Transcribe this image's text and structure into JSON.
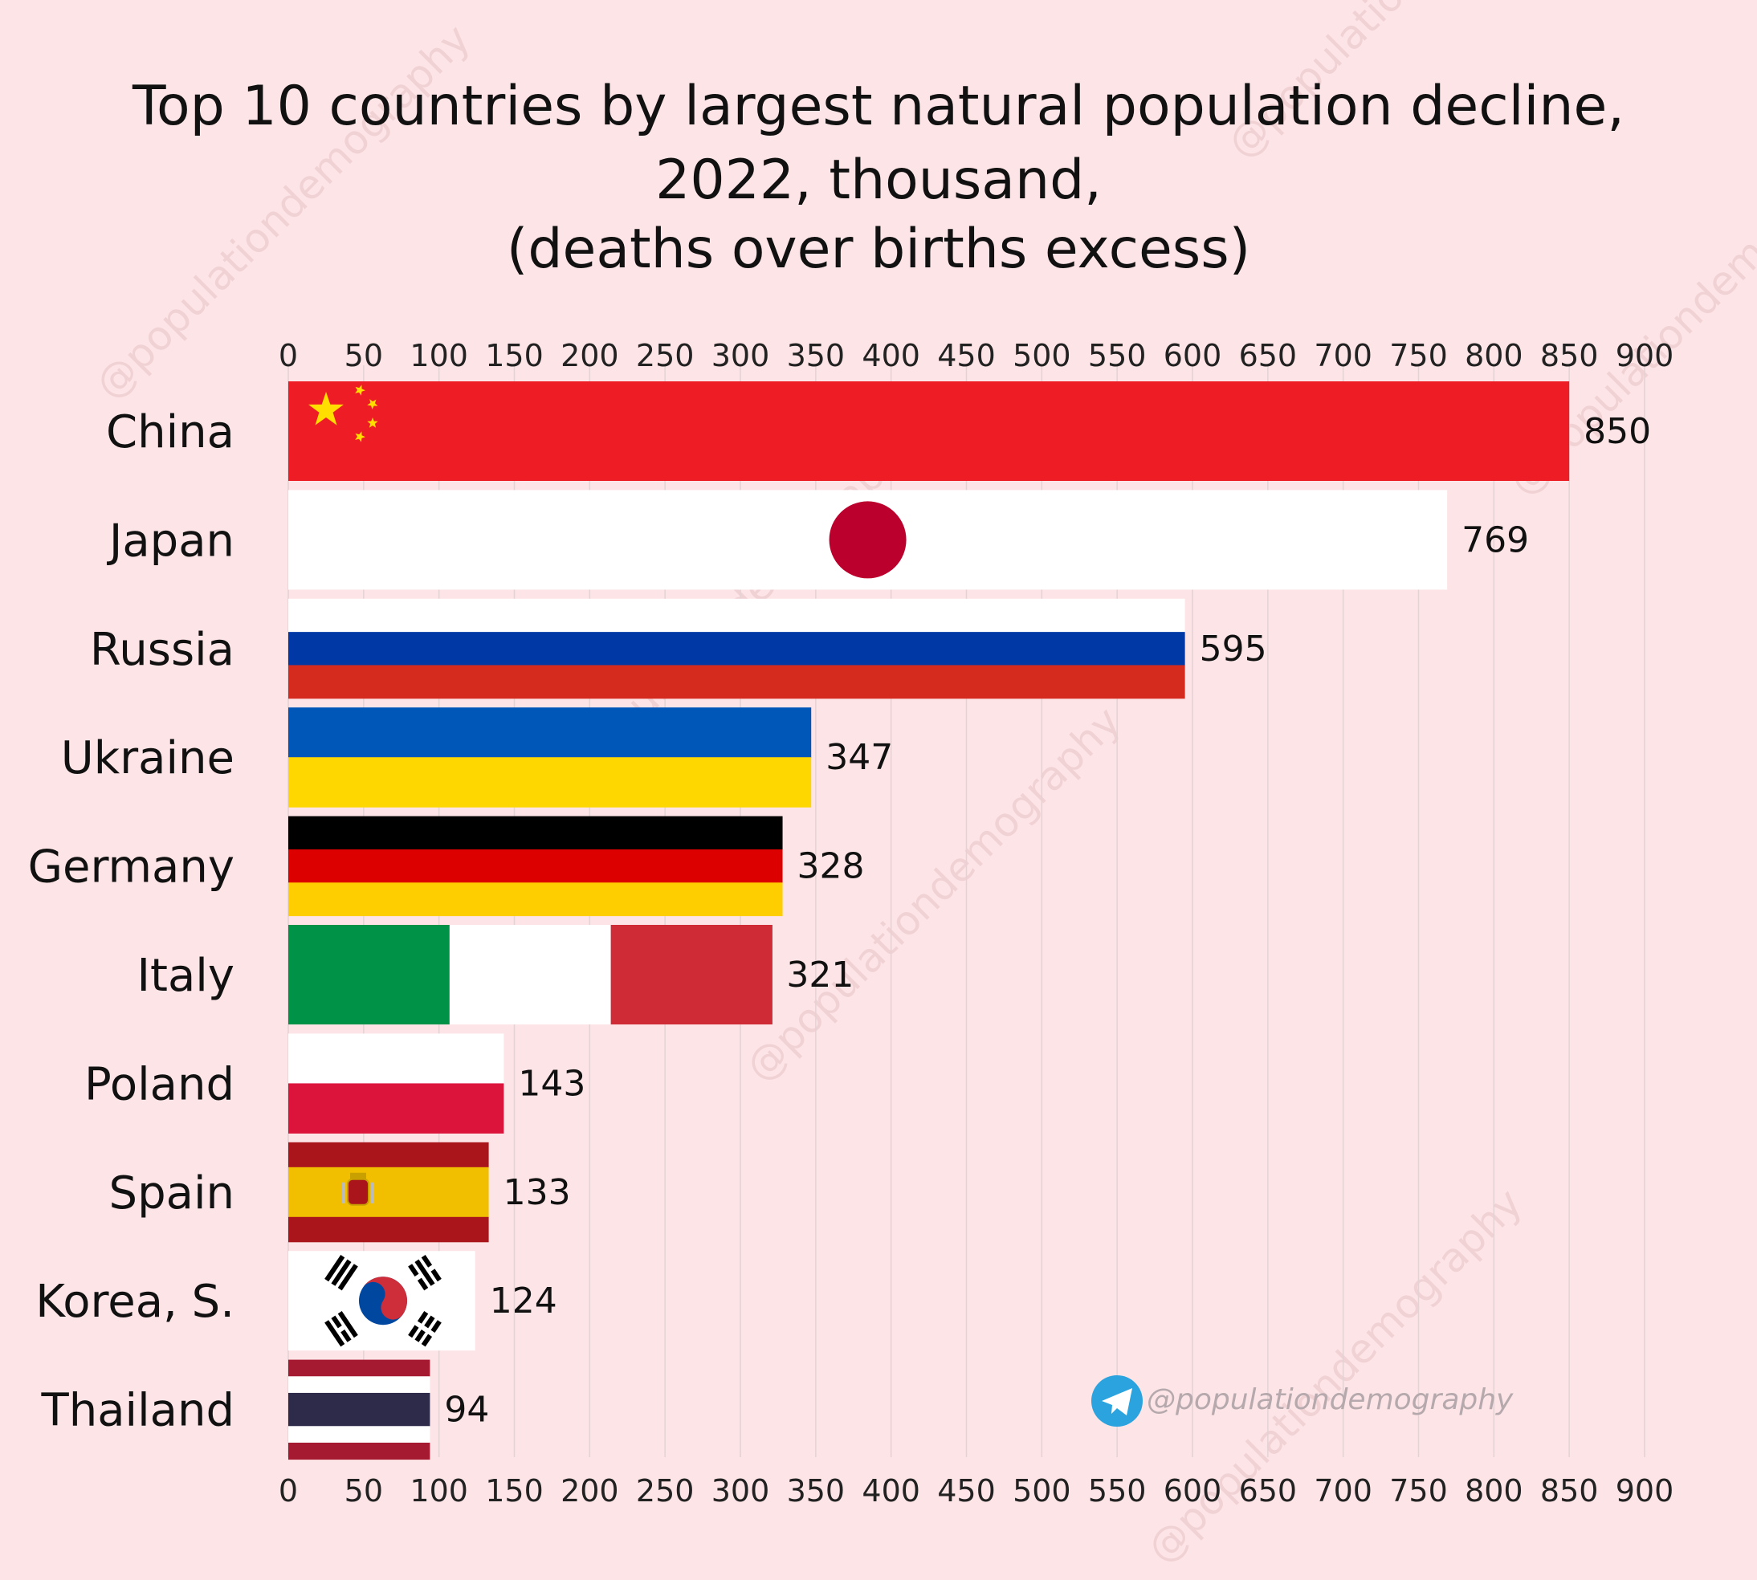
{
  "chart_data": {
    "type": "bar",
    "orientation": "horizontal",
    "title": [
      "Top 10 countries by largest natural population decline,",
      "2022, thousand,",
      "(deaths over births excess)"
    ],
    "categories": [
      "China",
      "Japan",
      "Russia",
      "Ukraine",
      "Germany",
      "Italy",
      "Poland",
      "Spain",
      "Korea, S.",
      "Thailand"
    ],
    "values": [
      850,
      769,
      595,
      347,
      328,
      321,
      143,
      133,
      124,
      94
    ],
    "flags": [
      "china",
      "japan",
      "russia",
      "ukraine",
      "germany",
      "italy",
      "poland",
      "spain",
      "korea",
      "thailand"
    ],
    "xlim": [
      0,
      900
    ],
    "xticks": [
      0,
      50,
      100,
      150,
      200,
      250,
      300,
      350,
      400,
      450,
      500,
      550,
      600,
      650,
      700,
      750,
      800,
      850,
      900
    ],
    "grid": true,
    "axis_labels_position": "top and bottom"
  },
  "watermark": "@populationdemography",
  "credit": {
    "icon": "telegram-icon",
    "text": "@populationdemography",
    "color": "#2aa3df"
  },
  "colors": {
    "background": "#fde4e6",
    "china_red": "#ee1c25",
    "china_star": "#ffde00",
    "japan_red": "#bc002d",
    "russia_blue": "#0039a6",
    "russia_red": "#d52b1e",
    "ukraine_blue": "#0057b7",
    "ukraine_yellow": "#ffd700",
    "germany_red": "#dd0000",
    "germany_gold": "#ffce00",
    "italy_green": "#009246",
    "italy_red": "#ce2b37",
    "poland_red": "#dc143c",
    "spain_red": "#aa151b",
    "spain_yellow": "#f1bf00",
    "korea_red": "#cd2e3a",
    "korea_blue": "#0047a0",
    "thailand_red": "#a51931",
    "thailand_blue": "#2d2a4a"
  }
}
